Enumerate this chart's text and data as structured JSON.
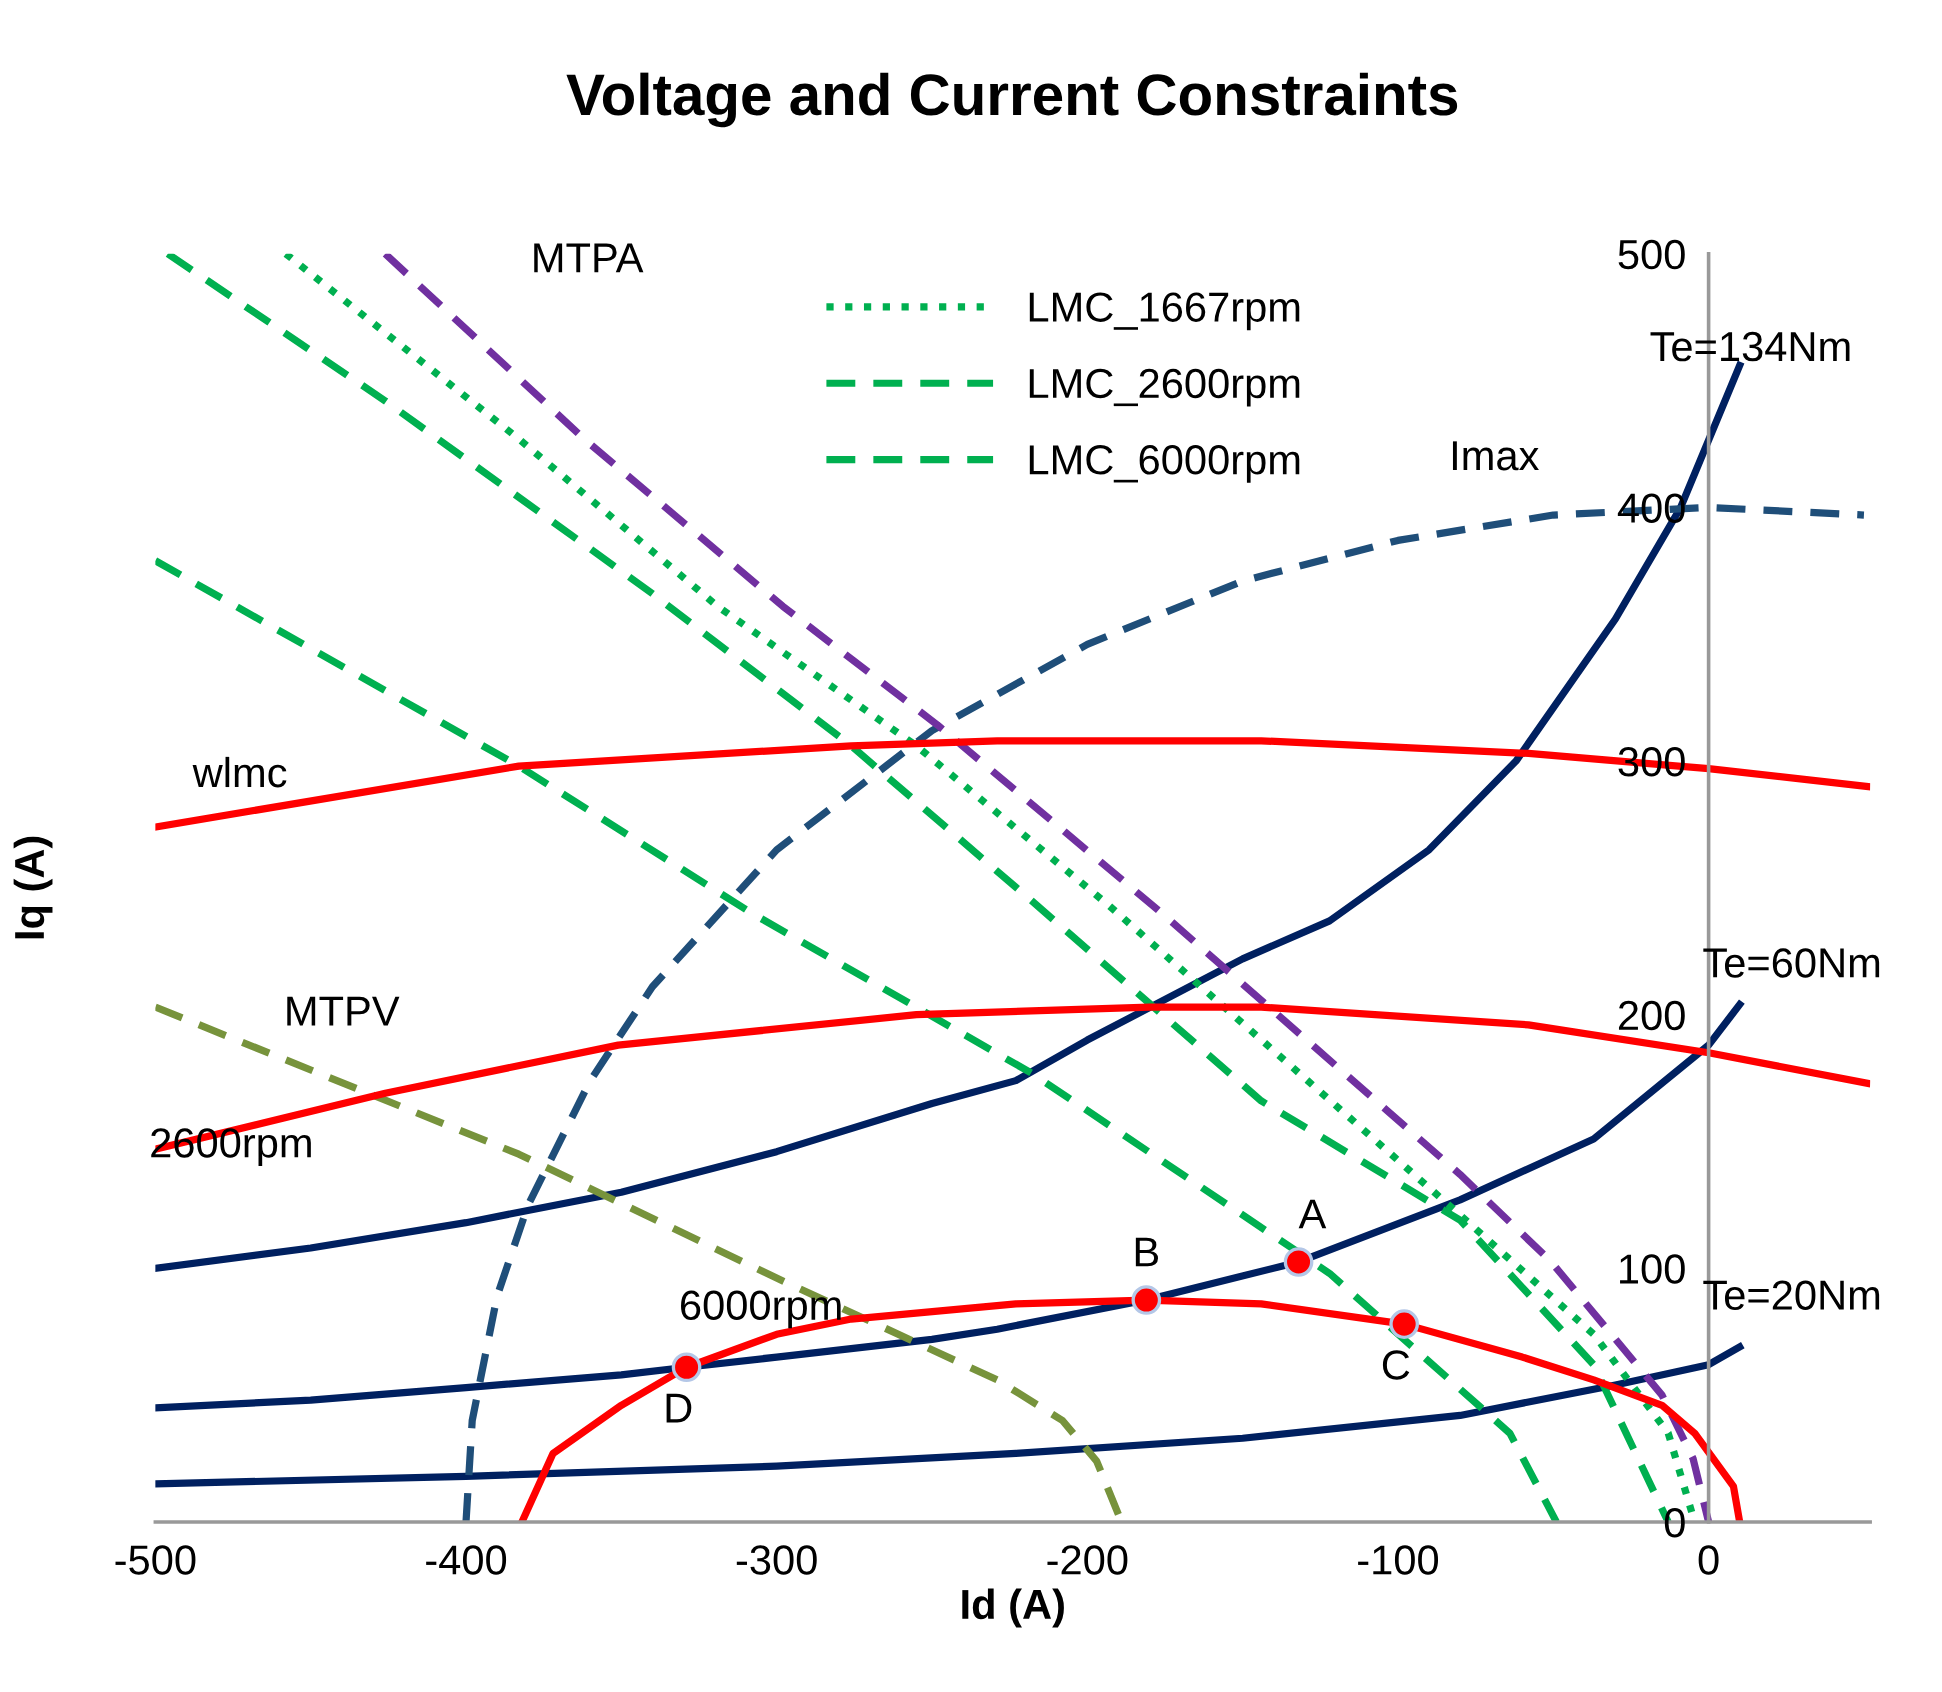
{
  "chart_data": {
    "type": "line",
    "title": "Voltage and Current Constraints",
    "xlabel": "Id (A)",
    "ylabel": "Iq (A)",
    "xlim": [
      -500,
      52
    ],
    "xticks": [
      -500,
      -400,
      -300,
      -200,
      -100,
      0
    ],
    "ylim": [
      0,
      500
    ],
    "yticks": [
      0,
      100,
      200,
      300,
      400,
      500
    ],
    "grid": false,
    "legend": "top",
    "marker": "none",
    "series": [
      {
        "name": "Te=134Nm",
        "color": "#002060",
        "line_style": "solid",
        "x": [
          -500,
          -450,
          -400,
          -350,
          -300,
          -250,
          -223,
          -200,
          -150,
          -122,
          -90,
          -62,
          -30,
          -9,
          10
        ],
        "values": [
          100,
          108,
          118,
          130,
          146,
          165,
          174,
          190,
          222,
          237,
          265,
          300,
          356,
          400,
          456
        ]
      },
      {
        "name": "Te=60Nm",
        "color": "#002060",
        "line_style": "solid",
        "x": [
          -500,
          -450,
          -400,
          -350,
          -329,
          -300,
          -250,
          -229,
          -181,
          -132,
          -80,
          -37,
          0,
          10
        ],
        "values": [
          45,
          48,
          53,
          58,
          61,
          65,
          72,
          76,
          87.5,
          102.5,
          127,
          151,
          188,
          204
        ]
      },
      {
        "name": "Te=20Nm",
        "color": "#002060",
        "line_style": "solid",
        "x": [
          -500,
          -400,
          -300,
          -223,
          -150,
          -80,
          -30,
          0,
          10
        ],
        "values": [
          15,
          18,
          22,
          27,
          33,
          42,
          54,
          62,
          69
        ]
      },
      {
        "name": "Imax",
        "color": "#1f4e79",
        "line_style": "dashed",
        "x": [
          -400,
          -398,
          -390,
          -380,
          -360,
          -340,
          -300,
          -250,
          -200,
          -150,
          -100,
          -50,
          0,
          50
        ],
        "values": [
          0,
          40,
          89,
          125,
          174,
          211,
          265,
          312,
          346,
          371,
          387,
          397,
          400,
          397
        ]
      },
      {
        "name": "MTPA",
        "color": "#7030a0",
        "line_style": "dashed",
        "x": [
          -426,
          -362,
          -298,
          -248,
          -176,
          -80,
          -51,
          -15,
          -5,
          0
        ],
        "values": [
          500,
          427,
          361,
          314,
          240,
          137,
          103,
          50,
          25,
          0
        ]
      },
      {
        "name": "LMC_1667rpm",
        "color": "#00b050",
        "line_style": "dotted",
        "x": [
          -458,
          -383,
          -319,
          -255,
          -193,
          -80,
          -37,
          -13,
          -4.5
        ],
        "values": [
          500,
          427,
          361,
          306,
          243,
          121,
          74,
          35,
          0
        ]
      },
      {
        "name": "LMC_2600rpm",
        "color": "#00b050",
        "line_style": "dashed",
        "x": [
          -496,
          -426,
          -340,
          -276,
          -218,
          -144,
          -80,
          -37,
          -13
        ],
        "values": [
          500,
          442,
          366,
          306,
          245,
          166,
          119,
          62,
          0
        ]
      },
      {
        "name": "LMC_6000rpm",
        "color": "#00b050",
        "line_style": "dashed",
        "x": [
          -500,
          -383,
          -308,
          -218,
          -122,
          -64,
          -49
        ],
        "values": [
          379,
          298,
          240,
          177,
          98,
          35,
          0
        ]
      },
      {
        "name": "MTPV",
        "color": "#77933c",
        "line_style": "dashed",
        "x": [
          -500,
          -383,
          -298,
          -229,
          -208,
          -197,
          -189
        ],
        "values": [
          203,
          145,
          95,
          56,
          40,
          24,
          0
        ]
      },
      {
        "name": "wlmc",
        "color": "#ff0000",
        "line_style": "solid",
        "x": [
          -500,
          -383,
          -276,
          -229,
          -144,
          -58,
          0,
          51
        ],
        "values": [
          274,
          298,
          306,
          308,
          308,
          303,
          297,
          290
        ]
      },
      {
        "name": "2600rpm",
        "color": "#ff0000",
        "line_style": "solid",
        "x": [
          -500,
          -426,
          -351,
          -255,
          -180,
          -144,
          -58,
          0,
          51
        ],
        "values": [
          147,
          169,
          188,
          200,
          203,
          203,
          196,
          185,
          173
        ]
      },
      {
        "name": "6000rpm",
        "color": "#ff0000",
        "line_style": "solid",
        "x": [
          -382,
          -372,
          -350,
          -329,
          -300,
          -276,
          -223,
          -181,
          -144,
          -98,
          -60,
          -37,
          -15,
          -4.5,
          8,
          10
        ],
        "values": [
          0,
          27,
          46,
          61,
          74,
          80,
          86,
          87.5,
          86,
          78,
          65,
          56,
          46,
          35,
          14,
          0
        ]
      },
      {
        "type": "scatter",
        "color": "#ff0000",
        "marker": "circle",
        "x": [
          -132,
          -181,
          -98,
          -329
        ],
        "values": [
          102.5,
          87.5,
          78,
          61
        ]
      }
    ],
    "annotations": [
      {
        "text": "A",
        "x": -132,
        "y": 102.5
      },
      {
        "text": "B",
        "x": -181,
        "y": 87.5
      },
      {
        "text": "C",
        "x": -98,
        "y": 78
      },
      {
        "text": "D",
        "x": -329,
        "y": 61
      }
    ]
  }
}
